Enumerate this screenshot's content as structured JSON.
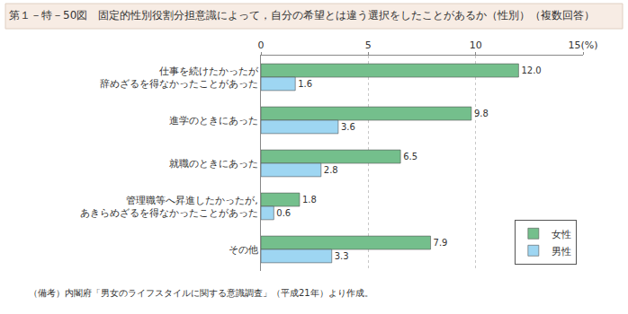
{
  "chart_data": {
    "type": "bar",
    "orientation": "horizontal",
    "title": "第１－特－50図　固定的性別役割分担意識によって，自分の希望とは違う選択をしたことがあるか（性別）（複数回答）",
    "categories": [
      "仕事を続けたかったが\n辞めざるを得なかったことがあった",
      "進学のときにあった",
      "就職のときにあった",
      "管理職等へ昇進したかったが,\nあきらめざるを得なかったことがあった",
      "その他"
    ],
    "series": [
      {
        "name": "女性",
        "color": "#74bf8c",
        "values": [
          12.0,
          9.8,
          6.5,
          1.8,
          7.9
        ],
        "value_labels": [
          "12.0",
          "9.8",
          "6.5",
          "1.8",
          "7.9"
        ]
      },
      {
        "name": "男性",
        "color": "#9ed6f2",
        "values": [
          1.6,
          3.6,
          2.8,
          0.6,
          3.3
        ],
        "value_labels": [
          "1.6",
          "3.6",
          "2.8",
          "0.6",
          "3.3"
        ]
      }
    ],
    "xlim": [
      0,
      15
    ],
    "xticks": [
      0,
      5,
      10,
      {
        "value": 15,
        "label": "15(%)"
      }
    ],
    "grid": true,
    "data_labels": true,
    "legend": "bottom right",
    "annotations": [
      "（備考）内閣府「男女のライフスタイルに関する意識調査」（平成21年）より作成。"
    ]
  }
}
